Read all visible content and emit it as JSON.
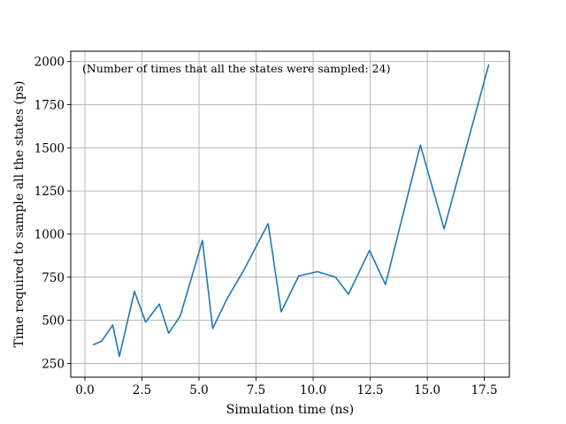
{
  "chart_data": {
    "type": "line",
    "title": "",
    "xlabel": "Simulation time (ns)",
    "ylabel": "Time required to sample all the states (ps)",
    "annotation": "(Number of times that all the states were sampled: 24)",
    "xlim": [
      -0.62,
      18.6
    ],
    "ylim": [
      170,
      2060
    ],
    "xticks": [
      0.0,
      2.5,
      5.0,
      7.5,
      10.0,
      12.5,
      15.0,
      17.5
    ],
    "xtick_labels": [
      "0.0",
      "2.5",
      "5.0",
      "7.5",
      "10.0",
      "12.5",
      "15.0",
      "17.5"
    ],
    "yticks": [
      250,
      500,
      750,
      1000,
      1250,
      1500,
      1750,
      2000
    ],
    "ytick_labels": [
      "250",
      "500",
      "750",
      "1000",
      "1250",
      "1500",
      "1750",
      "2000"
    ],
    "grid": true,
    "line_color": "#1f77b4",
    "x": [
      0.36,
      0.74,
      1.22,
      1.51,
      2.17,
      2.66,
      3.26,
      3.67,
      4.18,
      5.15,
      5.6,
      6.22,
      6.97,
      8.03,
      8.6,
      9.37,
      10.19,
      10.98,
      11.55,
      12.47,
      13.17,
      14.7,
      15.74,
      17.7
    ],
    "series": [
      {
        "values": [
          357,
          380,
          473,
          290,
          668,
          489,
          594,
          425,
          525,
          963,
          452,
          623,
          792,
          1061,
          549,
          757,
          782,
          750,
          651,
          905,
          707,
          1516,
          1030,
          1984
        ]
      }
    ]
  }
}
